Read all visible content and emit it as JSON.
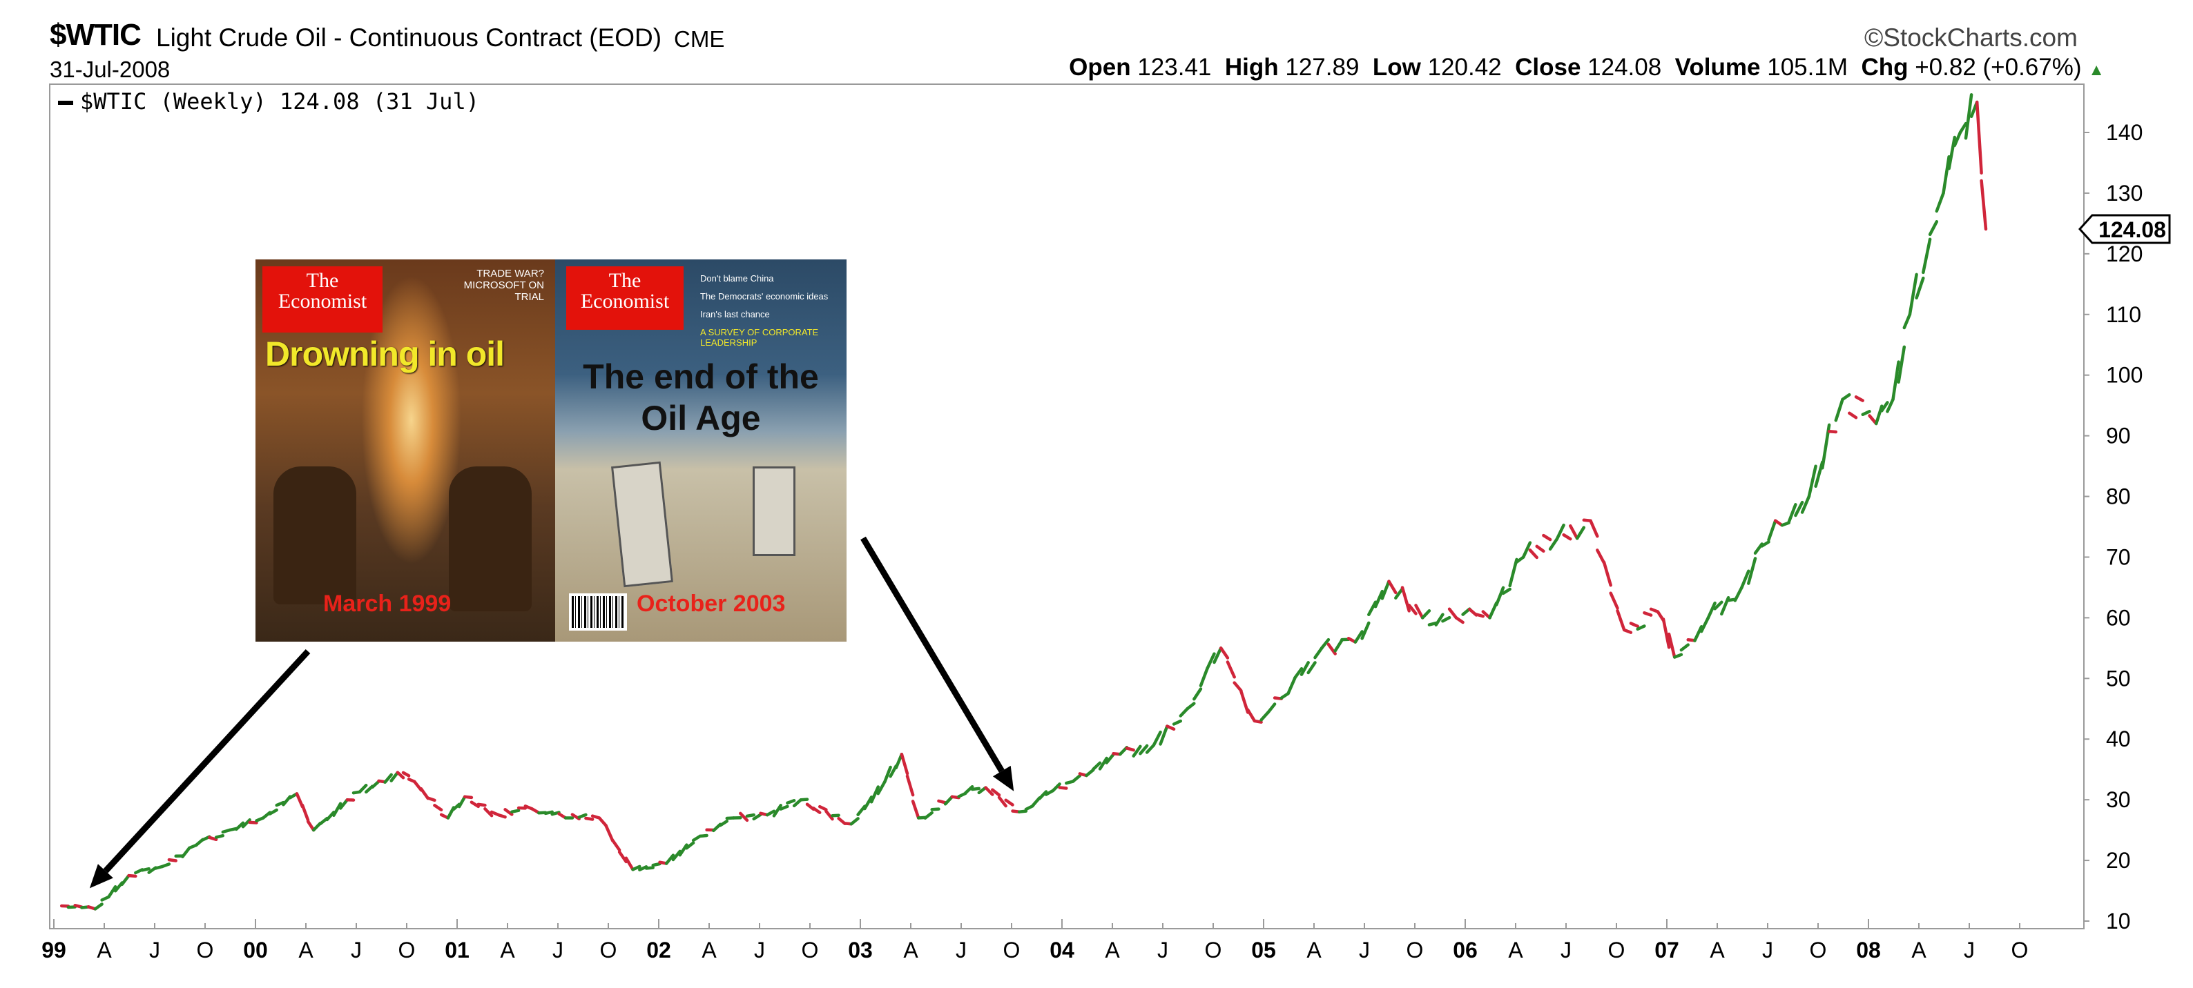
{
  "header": {
    "symbol": "$WTIC",
    "title": "Light Crude Oil - Continuous Contract (EOD)",
    "exchange": "CME",
    "date": "31-Jul-2008",
    "brand": "©StockCharts.com",
    "open_label": "Open",
    "open": "123.41",
    "high_label": "High",
    "high": "127.89",
    "low_label": "Low",
    "low": "120.42",
    "close_label": "Close",
    "close": "124.08",
    "volume_label": "Volume",
    "volume": "105.1M",
    "chg_label": "Chg",
    "chg": "+0.82 (+0.67%)"
  },
  "legend": {
    "text": "$WTIC (Weekly) 124.08 (31 Jul)"
  },
  "covers": {
    "left": {
      "logo_line1": "The",
      "logo_line2": "Economist",
      "side_text": "TRADE WAR? MICROSOFT ON TRIAL",
      "headline": "Drowning in oil",
      "date": "March 1999"
    },
    "right": {
      "logo_line1": "The",
      "logo_line2": "Economist",
      "side_lines": [
        "Don't blame China",
        "The Democrats' economic ideas",
        "Iran's last chance",
        "A SURVEY OF CORPORATE LEADERSHIP"
      ],
      "headline_line1": "The end of the",
      "headline_line2": "Oil Age",
      "date": "October 2003"
    }
  },
  "colors": {
    "up": "#2a8a2a",
    "down": "#d0253a",
    "arrow": "#000000",
    "gridless_background": "#ffffff"
  },
  "chart_data": {
    "type": "line",
    "title": "$WTIC Light Crude Oil - Continuous Contract (EOD)",
    "series": [
      {
        "name": "$WTIC (Weekly)",
        "last_value": 124.08
      }
    ],
    "x": [
      "1999-01",
      "1999-03",
      "1999-05",
      "1999-07",
      "1999-09",
      "1999-11",
      "2000-01",
      "2000-03",
      "2000-04",
      "2000-06",
      "2000-09",
      "2000-10",
      "2000-12",
      "2001-01",
      "2001-03",
      "2001-05",
      "2001-07",
      "2001-09",
      "2001-11",
      "2002-01",
      "2002-03",
      "2002-05",
      "2002-07",
      "2002-09",
      "2002-12",
      "2003-02",
      "2003-03",
      "2003-04",
      "2003-06",
      "2003-08",
      "2003-10",
      "2003-12",
      "2004-02",
      "2004-04",
      "2004-06",
      "2004-08",
      "2004-10",
      "2004-12",
      "2005-02",
      "2005-04",
      "2005-06",
      "2005-08",
      "2005-10",
      "2005-12",
      "2006-02",
      "2006-04",
      "2006-06",
      "2006-08",
      "2006-10",
      "2006-12",
      "2007-01",
      "2007-03",
      "2007-05",
      "2007-07",
      "2007-09",
      "2007-11",
      "2008-01",
      "2008-02",
      "2008-03",
      "2008-05",
      "2008-06",
      "2008-07",
      "2008-07-31"
    ],
    "values": [
      12.5,
      12.0,
      17.5,
      19.0,
      22.5,
      25.0,
      27.0,
      31.0,
      25.0,
      30.0,
      34.5,
      33.0,
      27.0,
      30.5,
      27.5,
      28.5,
      27.0,
      27.0,
      18.5,
      19.5,
      24.0,
      27.0,
      27.5,
      30.0,
      26.0,
      33.0,
      37.5,
      27.0,
      30.5,
      32.0,
      28.0,
      31.5,
      34.0,
      37.5,
      39.0,
      45.0,
      55.0,
      43.0,
      47.5,
      55.0,
      56.0,
      66.0,
      60.0,
      60.0,
      60.0,
      70.0,
      73.0,
      76.0,
      58.0,
      61.0,
      53.5,
      60.0,
      65.0,
      76.0,
      80.0,
      96.0,
      92.0,
      96.0,
      110.0,
      130.0,
      140.0,
      145.0,
      124.08
    ],
    "x_ticks": [
      "99",
      "A",
      "J",
      "O",
      "00",
      "A",
      "J",
      "O",
      "01",
      "A",
      "J",
      "O",
      "02",
      "A",
      "J",
      "O",
      "03",
      "A",
      "J",
      "O",
      "04",
      "A",
      "J",
      "O",
      "05",
      "A",
      "J",
      "O",
      "06",
      "A",
      "J",
      "O",
      "07",
      "A",
      "J",
      "O",
      "08",
      "A",
      "J",
      "O"
    ],
    "y_ticks": [
      10,
      20,
      30,
      40,
      50,
      60,
      70,
      80,
      90,
      100,
      110,
      120,
      130,
      140
    ],
    "ylim": [
      8,
      148
    ],
    "grid": false,
    "legend_position": "top-left",
    "annotations": [
      {
        "label": "March 1999",
        "points_to": "1999-03"
      },
      {
        "label": "October 2003",
        "points_to": "2003-10"
      }
    ]
  }
}
